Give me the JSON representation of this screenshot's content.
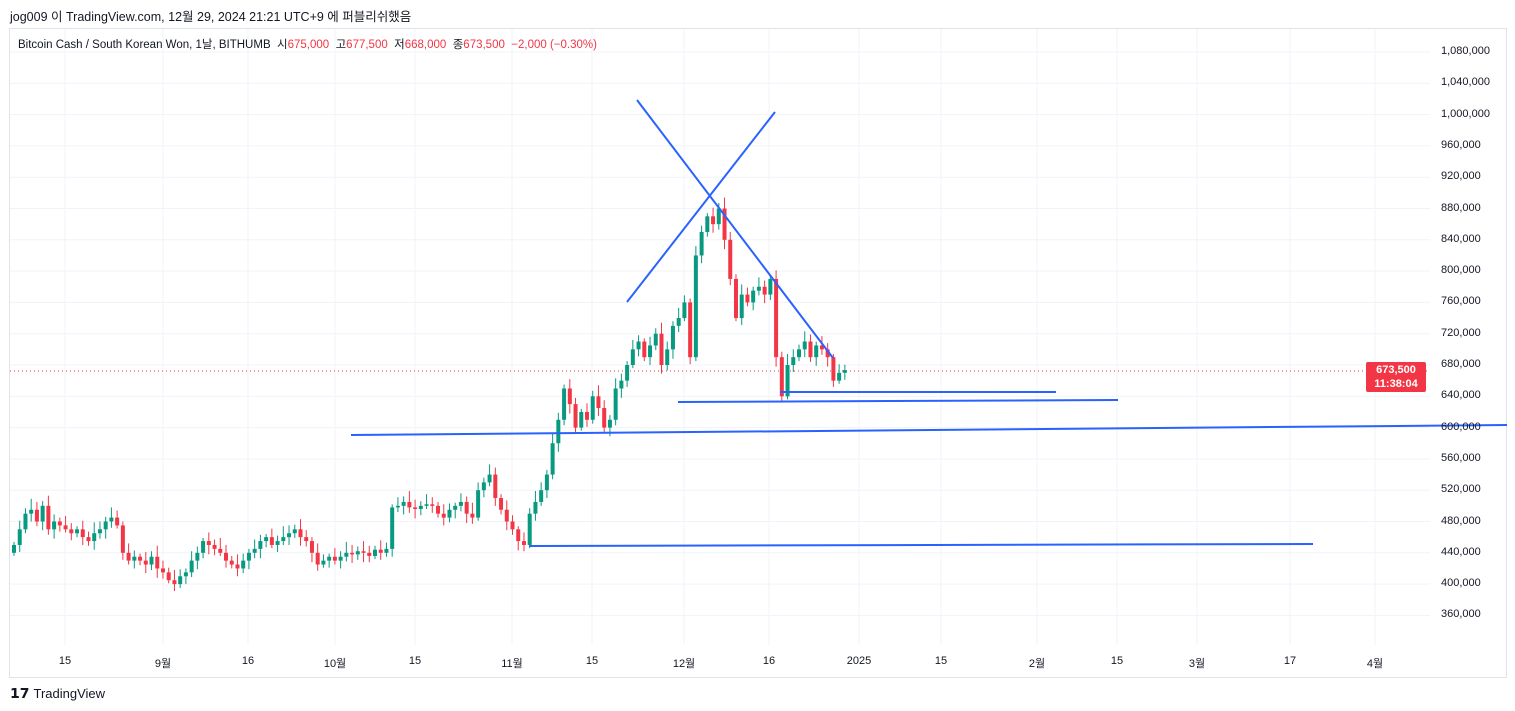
{
  "publish_line": "jog009 이 TradingView.com, 12월 29, 2024 21:21 UTC+9 에 퍼블리쉬했음",
  "legend": {
    "symbol": "Bitcoin Cash / South Korean Won, 1날, BITHUMB",
    "o_label": "시",
    "o": "675,000",
    "h_label": "고",
    "h": "677,500",
    "l_label": "저",
    "l": "668,000",
    "c_label": "종",
    "c": "673,500",
    "change": "−2,000 (−0.30%)"
  },
  "price_axis": [
    "1,080,000",
    "1,040,000",
    "1,000,000",
    "960,000",
    "920,000",
    "880,000",
    "840,000",
    "800,000",
    "760,000",
    "720,000",
    "680,000",
    "640,000",
    "600,000",
    "560,000",
    "520,000",
    "480,000",
    "440,000",
    "400,000",
    "360,000"
  ],
  "time_axis": [
    "15",
    "9월",
    "16",
    "10월",
    "15",
    "11월",
    "15",
    "12월",
    "16",
    "2025",
    "15",
    "2월",
    "15",
    "3월",
    "17",
    "4월"
  ],
  "last_price": {
    "price": "673,500",
    "countdown": "11:38:04"
  },
  "footer": {
    "brand": "TradingView"
  },
  "colors": {
    "up": "#089981",
    "down": "#f23645",
    "drawing": "#2962ff"
  },
  "chart_data": {
    "type": "candlestick",
    "unit": "KRW (thousands)",
    "start": "Aug 6, 2024",
    "closes": [
      450,
      470,
      490,
      495,
      480,
      500,
      470,
      480,
      475,
      470,
      465,
      470,
      460,
      455,
      465,
      470,
      480,
      485,
      475,
      440,
      430,
      435,
      430,
      425,
      435,
      420,
      415,
      405,
      400,
      410,
      415,
      430,
      440,
      455,
      450,
      445,
      440,
      430,
      425,
      420,
      430,
      440,
      445,
      455,
      460,
      450,
      455,
      460,
      465,
      470,
      460,
      455,
      440,
      425,
      430,
      435,
      430,
      435,
      440,
      438,
      442,
      440,
      436,
      444,
      440,
      445,
      498,
      500,
      505,
      498,
      496,
      500,
      502,
      500,
      490,
      485,
      495,
      500,
      505,
      490,
      485,
      520,
      530,
      540,
      510,
      495,
      480,
      470,
      455,
      450,
      490,
      505,
      520,
      540,
      580,
      610,
      650,
      630,
      600,
      620,
      610,
      640,
      625,
      600,
      610,
      650,
      660,
      680,
      700,
      710,
      690,
      705,
      720,
      680,
      700,
      730,
      740,
      760,
      690,
      820,
      850,
      870,
      860,
      880,
      840,
      790,
      740,
      770,
      760,
      775,
      780,
      770,
      790,
      690,
      640,
      680,
      690,
      700,
      710,
      690,
      705,
      700,
      690,
      660,
      670,
      673.5
    ]
  }
}
